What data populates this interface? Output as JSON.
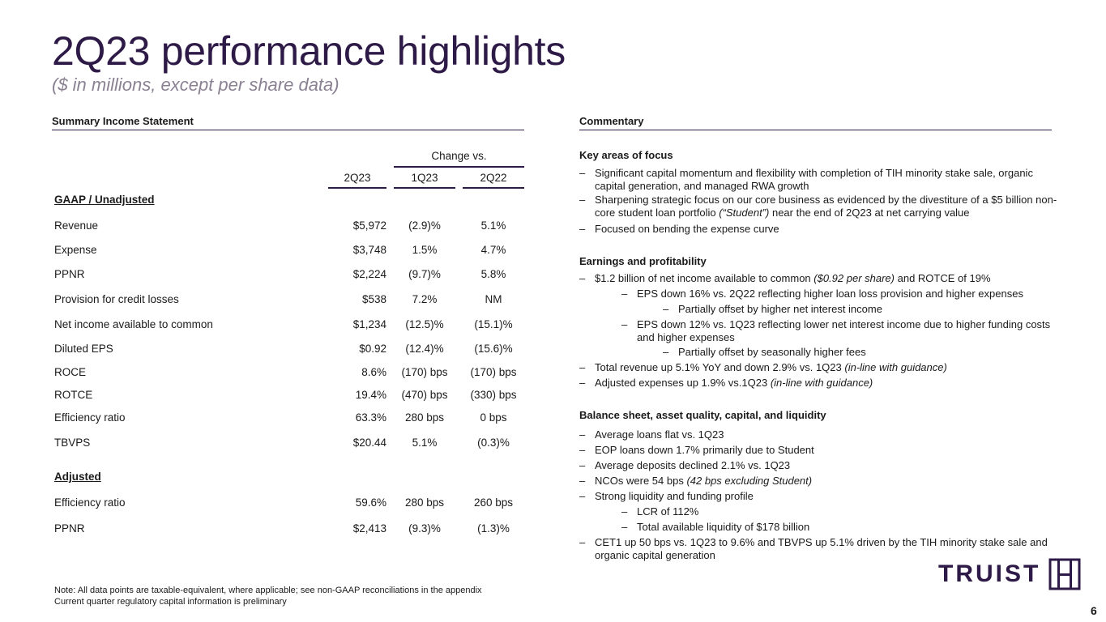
{
  "page": {
    "title": "2Q23 performance highlights",
    "subtitle": "($ in millions, except per share data)",
    "page_number": "6"
  },
  "left": {
    "header": "Summary Income Statement",
    "change_vs": "Change vs.",
    "columns": [
      "2Q23",
      "1Q23",
      "2Q22"
    ],
    "gaap_label": "GAAP / Unadjusted",
    "gaap_rows": [
      {
        "label": "Revenue",
        "v1": "$5,972",
        "v2": "(2.9)%",
        "v3": "5.1%"
      },
      {
        "label": "Expense",
        "v1": "$3,748",
        "v2": "1.5%",
        "v3": "4.7%"
      },
      {
        "label": "PPNR",
        "v1": "$2,224",
        "v2": "(9.7)%",
        "v3": "5.8%"
      },
      {
        "label": "Provision for credit losses",
        "v1": "$538",
        "v2": "7.2%",
        "v3": "NM"
      },
      {
        "label": "Net income available to common",
        "v1": "$1,234",
        "v2": "(12.5)%",
        "v3": "(15.1)%"
      },
      {
        "label": "Diluted EPS",
        "v1": "$0.92",
        "v2": "(12.4)%",
        "v3": "(15.6)%"
      },
      {
        "label": "ROCE",
        "v1": "8.6%",
        "v2": "(170) bps",
        "v3": "(170) bps"
      },
      {
        "label": "ROTCE",
        "v1": "19.4%",
        "v2": "(470) bps",
        "v3": "(330) bps"
      },
      {
        "label": "Efficiency ratio",
        "v1": "63.3%",
        "v2": "280 bps",
        "v3": "0 bps"
      },
      {
        "label": "TBVPS",
        "v1": "$20.44",
        "v2": "5.1%",
        "v3": "(0.3)%"
      }
    ],
    "adjusted_label": "Adjusted",
    "adjusted_rows": [
      {
        "label": "Efficiency ratio",
        "v1": "59.6%",
        "v2": "280 bps",
        "v3": "260 bps"
      },
      {
        "label": "PPNR",
        "v1": "$2,413",
        "v2": "(9.3)%",
        "v3": "(1.3)%"
      }
    ]
  },
  "right": {
    "header": "Commentary",
    "focus_title": "Key areas of focus",
    "focus": {
      "b1": "Significant capital momentum and flexibility with completion of TIH minority stake sale, organic capital generation, and managed RWA growth",
      "b2a": "Sharpening strategic focus on our core business as evidenced by the divestiture of a $5 billion non-core student loan portfolio ",
      "b2b": "(“Student”)",
      "b2c": " near the end of 2Q23 at net carrying value",
      "b3": "Focused on bending the expense curve"
    },
    "earnings_title": "Earnings and profitability",
    "earnings": {
      "b1a": "$1.2 billion of net income available to common ",
      "b1b": "($0.92 per share)",
      "b1c": " and ROTCE of 19%",
      "b1_1": "EPS down 16% vs. 2Q22 reflecting higher loan loss provision and higher expenses",
      "b1_1_1": "Partially offset by higher net interest income",
      "b1_2": "EPS down 12% vs. 1Q23 reflecting lower net interest income due to higher funding costs and higher expenses",
      "b1_2_1": "Partially offset by seasonally higher fees",
      "b2a": "Total revenue up 5.1% YoY and down 2.9% vs. 1Q23 ",
      "b2b": "(in-line with guidance)",
      "b3a": "Adjusted expenses up 1.9% vs.1Q23 ",
      "b3b": "(in-line with guidance)"
    },
    "balance_title": "Balance sheet, asset quality, capital, and liquidity",
    "balance": {
      "b1": "Average loans flat vs. 1Q23",
      "b2": "EOP loans down 1.7% primarily due to Student",
      "b3": "Average deposits declined 2.1% vs. 1Q23",
      "b4a": "NCOs were 54 bps ",
      "b4b": "(42 bps excluding Student)",
      "b5": "Strong liquidity and funding profile",
      "b5_1": "LCR of 112%",
      "b5_2": "Total available liquidity of $178 billion",
      "b6": "CET1 up 50 bps vs. 1Q23 to 9.6% and TBVPS up 5.1% driven by the TIH minority stake sale and organic capital generation"
    },
    "dash": "–"
  },
  "footer": {
    "note1": "Note: All data points are taxable-equivalent, where applicable; see non-GAAP reconciliations in the appendix",
    "note2": "Current quarter regulatory capital information is preliminary"
  },
  "logo": {
    "word": "TRUIST",
    "icon": "truist-logo-mark-icon",
    "color": "#2e1a47"
  }
}
